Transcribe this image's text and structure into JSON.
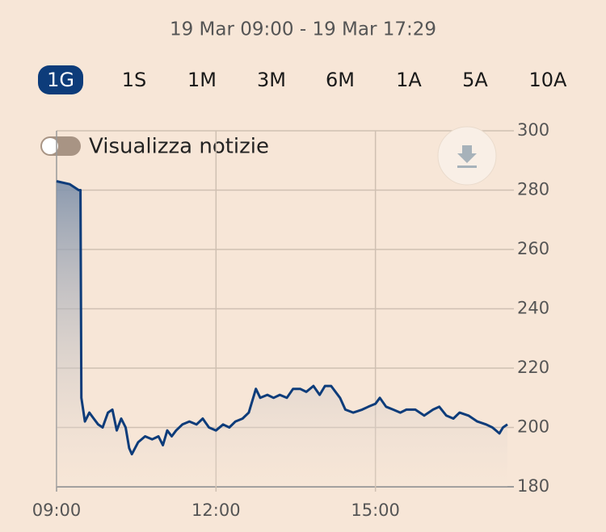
{
  "header": {
    "range": "19 Mar 09:00 - 19 Mar 17:29"
  },
  "periods": {
    "items": [
      "1G",
      "1S",
      "1M",
      "3M",
      "6M",
      "1A",
      "5A",
      "10A"
    ],
    "selected": "1G"
  },
  "toggle": {
    "label": "Visualizza notizie"
  },
  "chart_data": {
    "type": "area",
    "x": [
      "09:00",
      "09:15",
      "09:25",
      "09:27",
      "09:28",
      "09:32",
      "09:37",
      "09:42",
      "09:47",
      "09:52",
      "09:58",
      "10:03",
      "10:08",
      "10:13",
      "10:18",
      "10:22",
      "10:25",
      "10:32",
      "10:40",
      "10:48",
      "10:55",
      "11:00",
      "11:05",
      "11:10",
      "11:15",
      "11:22",
      "11:30",
      "11:38",
      "11:45",
      "11:52",
      "12:00",
      "12:08",
      "12:15",
      "12:22",
      "12:30",
      "12:37",
      "12:45",
      "12:50",
      "12:58",
      "13:05",
      "13:12",
      "13:20",
      "13:27",
      "13:35",
      "13:42",
      "13:50",
      "13:57",
      "14:03",
      "14:10",
      "14:20",
      "14:26",
      "14:35",
      "14:45",
      "14:52",
      "15:00",
      "15:05",
      "15:12",
      "15:20",
      "15:28",
      "15:35",
      "15:45",
      "15:55",
      "16:05",
      "16:12",
      "16:20",
      "16:28",
      "16:35",
      "16:45",
      "16:55",
      "17:05",
      "17:12",
      "17:20",
      "17:24",
      "17:29"
    ],
    "series": [
      {
        "color": "#0d3c7a",
        "values": [
          283,
          282,
          280,
          280,
          210,
          202,
          205,
          203,
          201,
          200,
          205,
          206,
          199,
          203,
          200,
          193,
          191,
          195,
          197,
          196,
          197,
          194,
          199,
          197,
          199,
          201,
          202,
          201,
          203,
          200,
          199,
          201,
          200,
          202,
          203,
          205,
          213,
          210,
          211,
          210,
          211,
          210,
          213,
          213,
          212,
          214,
          211,
          214,
          214,
          210,
          206,
          205,
          206,
          207,
          208,
          210,
          207,
          206,
          205,
          206,
          206,
          204,
          206,
          207,
          204,
          203,
          205,
          204,
          202,
          201,
          200,
          198,
          200,
          201
        ]
      }
    ],
    "xlim": [
      "09:00",
      "17:29"
    ],
    "xticks": [
      "09:00",
      "12:00",
      "15:00"
    ],
    "ylim": [
      180,
      300
    ],
    "yticks": [
      180,
      200,
      220,
      240,
      260,
      280,
      300
    ],
    "grid": true
  }
}
